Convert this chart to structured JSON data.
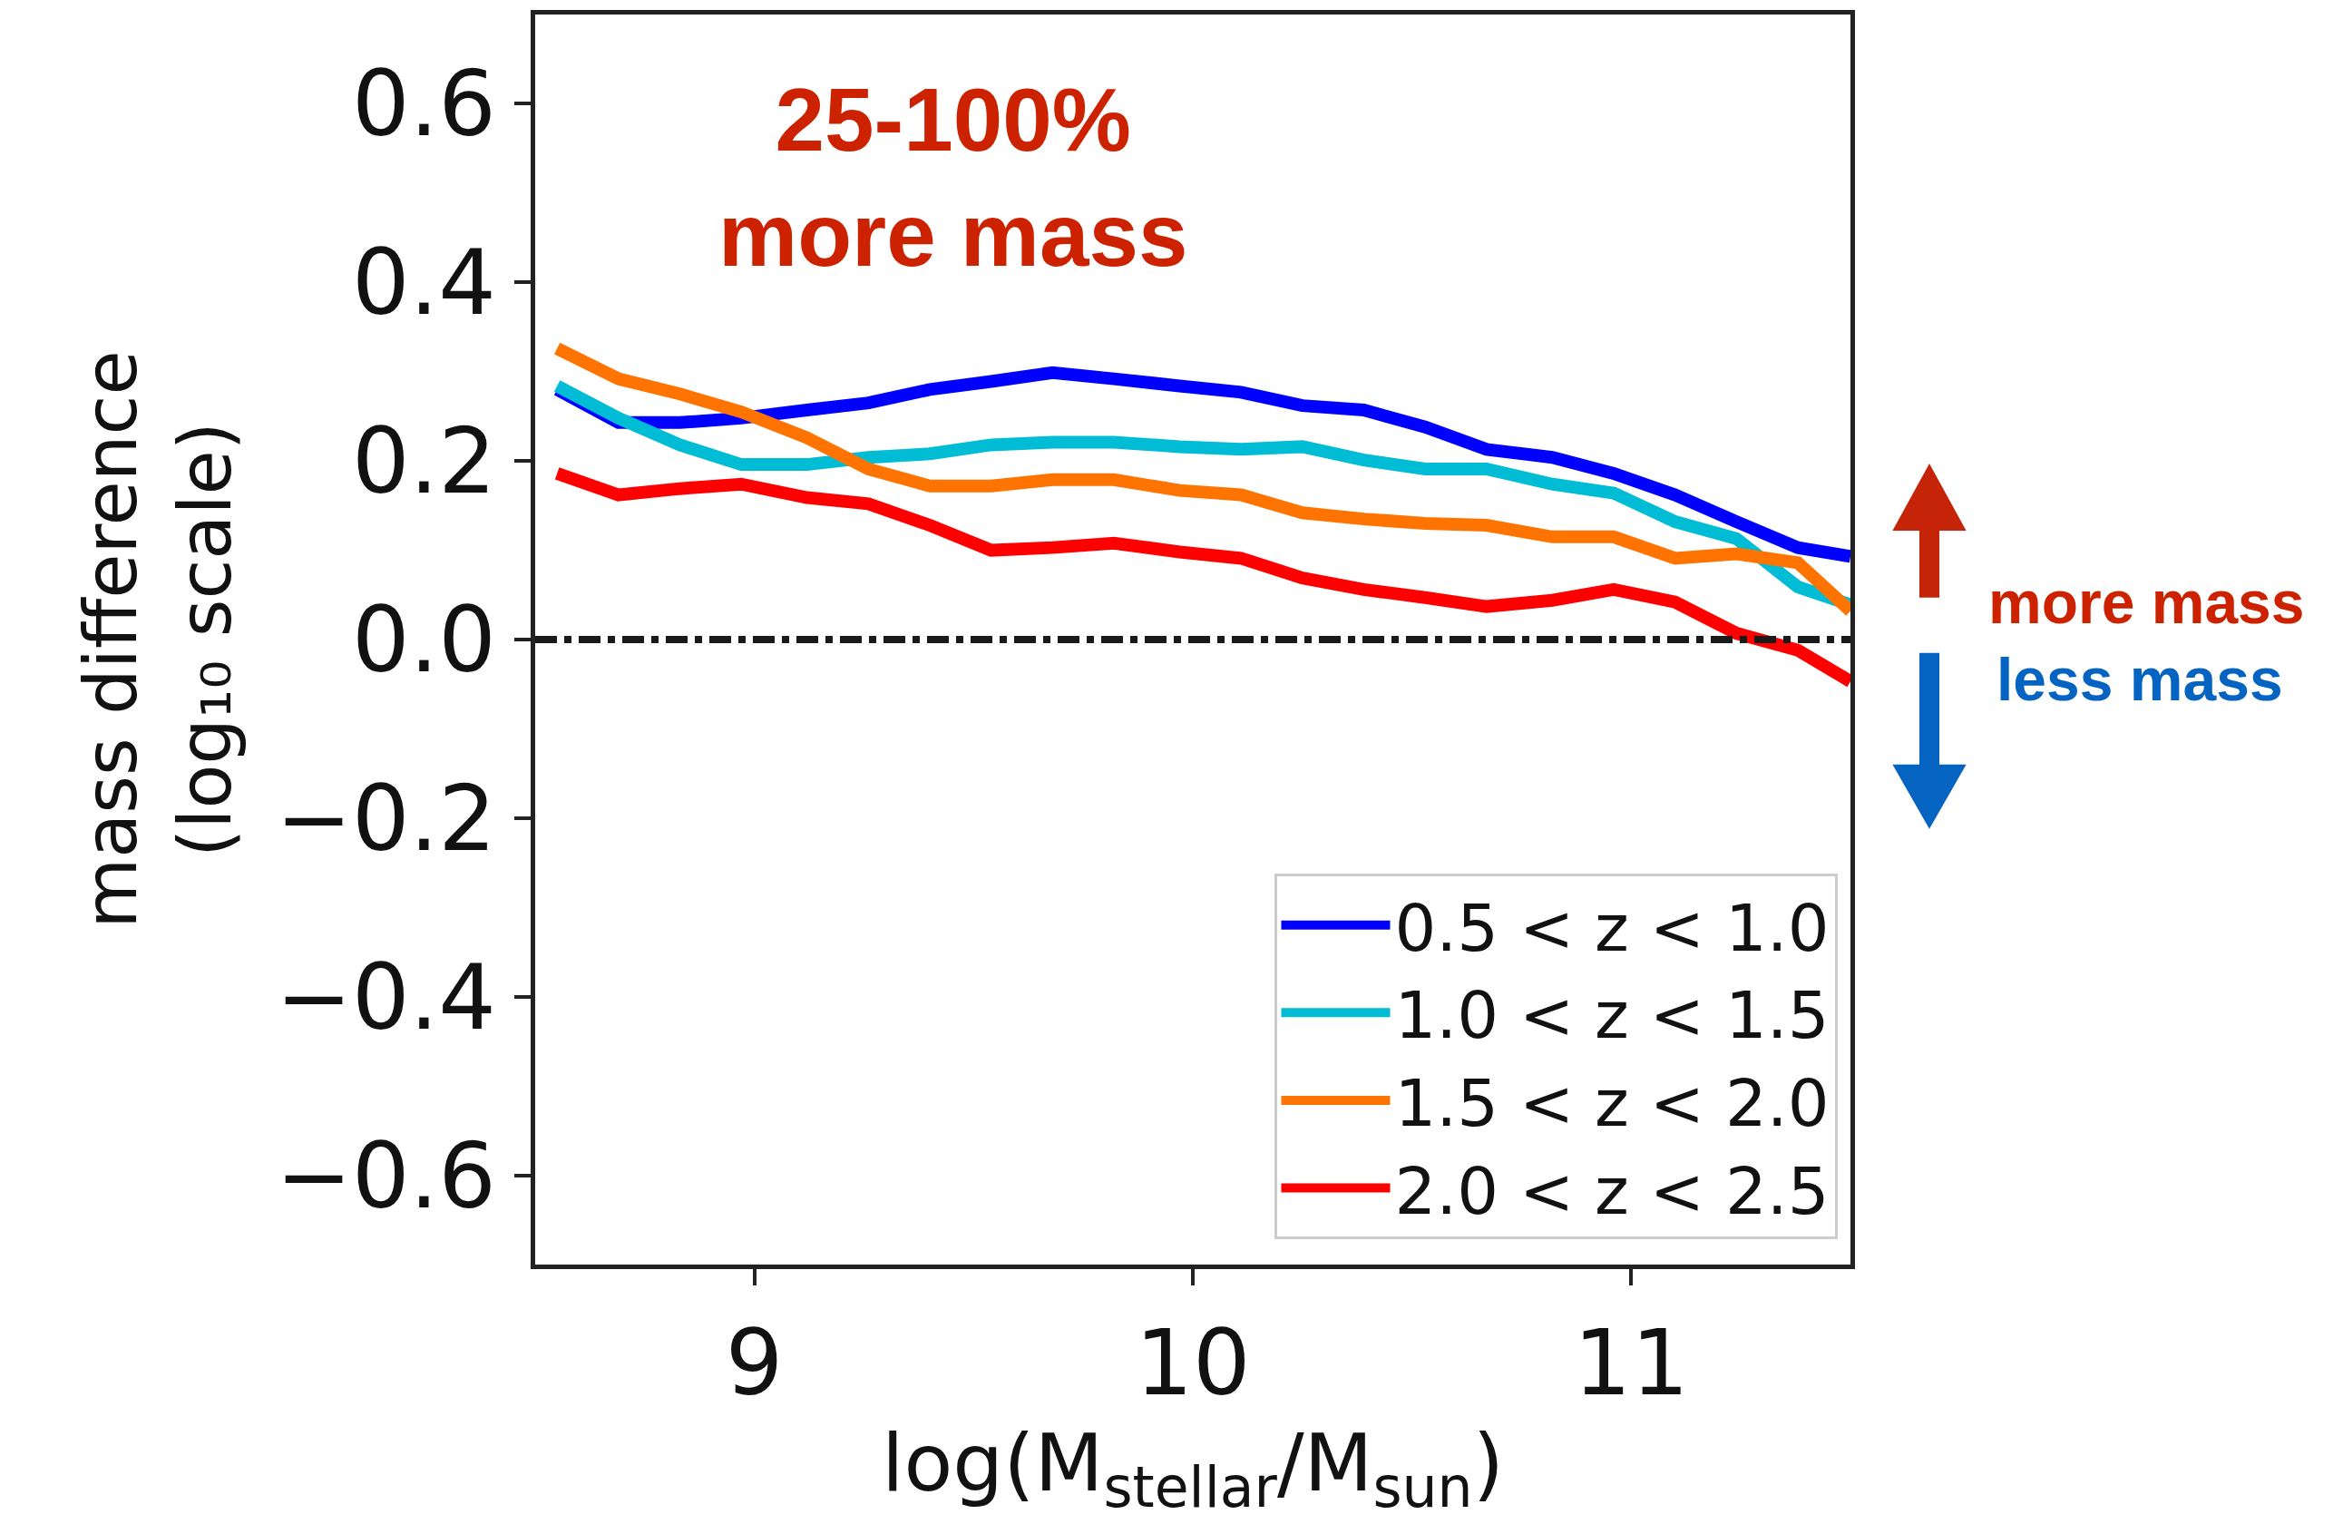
{
  "chart_data": {
    "type": "line",
    "xlabel": "log(M$_{stellar}$/M$_{sun}$)",
    "ylabel": "mass difference\n(log₁₀ scale)",
    "x": [
      8.55,
      8.69,
      8.83,
      8.97,
      9.12,
      9.26,
      9.4,
      9.54,
      9.68,
      9.82,
      9.97,
      10.11,
      10.25,
      10.39,
      10.53,
      10.67,
      10.82,
      10.96,
      11.1,
      11.24,
      11.38,
      11.5
    ],
    "series": [
      {
        "name": "0.5 < z < 1.0",
        "color": "#0000ff",
        "values": [
          0.28,
          0.243,
          0.243,
          0.248,
          0.257,
          0.265,
          0.28,
          0.289,
          0.299,
          0.292,
          0.284,
          0.277,
          0.262,
          0.257,
          0.238,
          0.213,
          0.204,
          0.186,
          0.162,
          0.132,
          0.103,
          0.093
        ]
      },
      {
        "name": "1.0 < z < 1.5",
        "color": "#00bcd4",
        "values": [
          0.284,
          0.248,
          0.218,
          0.196,
          0.196,
          0.204,
          0.208,
          0.218,
          0.221,
          0.221,
          0.216,
          0.213,
          0.216,
          0.201,
          0.191,
          0.191,
          0.174,
          0.164,
          0.132,
          0.113,
          0.059,
          0.039
        ]
      },
      {
        "name": "1.5 < z < 2.0",
        "color": "#ff7300",
        "values": [
          0.326,
          0.292,
          0.275,
          0.255,
          0.226,
          0.191,
          0.172,
          0.172,
          0.179,
          0.179,
          0.167,
          0.162,
          0.142,
          0.135,
          0.13,
          0.128,
          0.115,
          0.115,
          0.091,
          0.096,
          0.086,
          0.032
        ]
      },
      {
        "name": "2.0 < z < 2.5",
        "color": "#ff0000",
        "values": [
          0.186,
          0.162,
          0.169,
          0.174,
          0.159,
          0.152,
          0.128,
          0.1,
          0.103,
          0.108,
          0.098,
          0.091,
          0.069,
          0.056,
          0.047,
          0.037,
          0.044,
          0.056,
          0.042,
          0.007,
          -0.012,
          -0.047
        ]
      }
    ],
    "xlim": [
      8.5,
      11.5
    ],
    "xticks": [
      9,
      10,
      11
    ],
    "ylim": [
      -0.7,
      0.7
    ],
    "yticks": [
      {
        "value": 0.6,
        "label": "0.6"
      },
      {
        "value": 0.4,
        "label": "0.4"
      },
      {
        "value": 0.2,
        "label": "0.2"
      },
      {
        "value": 0,
        "label": "0.0"
      },
      {
        "value": -0.2,
        "label": "−0.2"
      },
      {
        "value": -0.4,
        "label": "−0.4"
      },
      {
        "value": -0.6,
        "label": "−0.6"
      }
    ],
    "ref_lines": [
      {
        "axis": "y",
        "value": 0,
        "color": "#1a1a1a",
        "line_style": "dashdot"
      }
    ],
    "annotations": [
      "25-100%\nmore mass",
      "more mass",
      "less mass"
    ],
    "legend": "bottom right",
    "marker": "none",
    "line_style": "solid"
  }
}
